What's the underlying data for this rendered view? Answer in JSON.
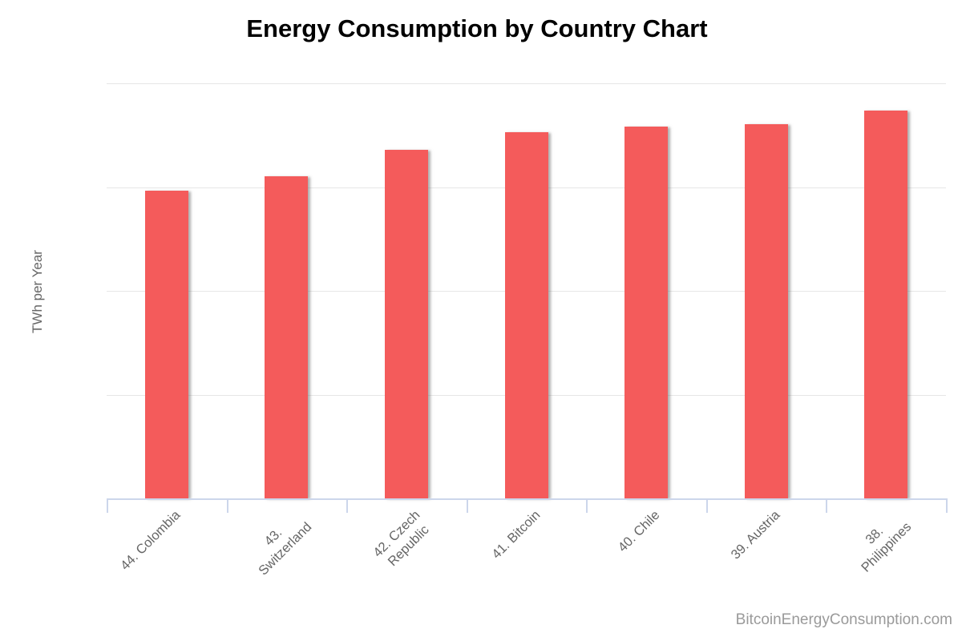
{
  "title": "Energy Consumption by Country Chart",
  "credits_label": "BitcoinEnergyConsumption.com",
  "colors": {
    "bar": "#f45b5b",
    "gridline": "#e6e6e6",
    "axis_line": "#ccd6eb",
    "axis_label": "#666666",
    "title": "#000000",
    "credits": "#9a9a9a",
    "background": "#ffffff"
  },
  "chart_data": {
    "type": "bar",
    "title": "Energy Consumption by Country Chart",
    "categories": [
      "44. Colombia",
      "43. Switzerland",
      "42. Czech Republic",
      "41. Bitcoin",
      "40. Chile",
      "39. Austria",
      "38. Philippines"
    ],
    "category_lines": [
      [
        "44. Colombia"
      ],
      [
        "43.",
        "Switzerland"
      ],
      [
        "42. Czech",
        "Republic"
      ],
      [
        "41. Bitcoin"
      ],
      [
        "40. Chile"
      ],
      [
        "39. Austria"
      ],
      [
        "38.",
        "Philippines"
      ]
    ],
    "values": [
      59.3,
      62.1,
      67.2,
      70.6,
      71.7,
      72.1,
      74.7
    ],
    "xlabel": "",
    "ylabel": "TWh per Year",
    "ylim": [
      0,
      80
    ],
    "yticks": [
      0,
      20,
      40,
      60,
      80
    ],
    "grid": true,
    "legend": "none",
    "label_rotation": -45,
    "bar_color": "#f45b5b"
  }
}
